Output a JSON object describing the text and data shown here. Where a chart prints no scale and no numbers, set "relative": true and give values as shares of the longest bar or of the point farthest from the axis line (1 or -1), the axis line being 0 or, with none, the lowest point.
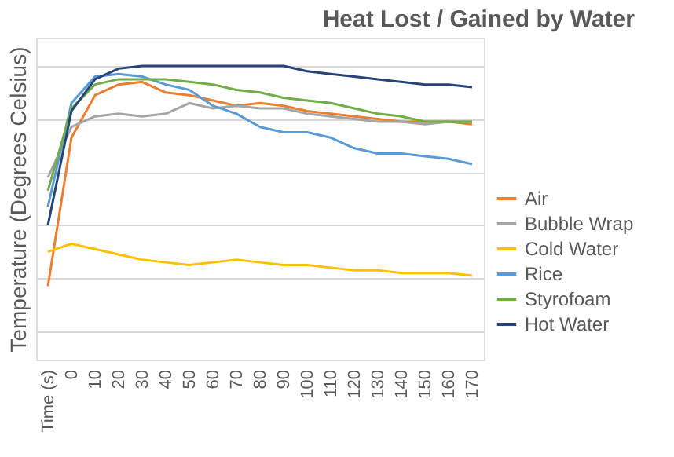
{
  "chart_data": {
    "type": "line",
    "title": "Heat Lost / Gained by Water",
    "ylabel": "Temperature (Degrees Celsius)",
    "relative": true,
    "grid": "y",
    "legend": "right",
    "marker": "none",
    "categories": [
      "Time (s)",
      "0",
      "10",
      "20",
      "30",
      "40",
      "50",
      "60",
      "70",
      "80",
      "90",
      "100",
      "110",
      "120",
      "130",
      "140",
      "150",
      "160",
      "170"
    ],
    "series": [
      {
        "name": "Air",
        "color": "#ed7d31",
        "values": [
          0.17,
          0.73,
          0.89,
          0.93,
          0.94,
          0.9,
          0.89,
          0.87,
          0.85,
          0.86,
          0.85,
          0.83,
          0.82,
          0.81,
          0.8,
          0.79,
          0.79,
          0.79,
          0.78
        ]
      },
      {
        "name": "Bubble Wrap",
        "color": "#a5a5a5",
        "values": [
          0.58,
          0.77,
          0.81,
          0.82,
          0.81,
          0.82,
          0.86,
          0.84,
          0.85,
          0.84,
          0.84,
          0.82,
          0.81,
          0.8,
          0.79,
          0.79,
          0.78,
          0.79,
          0.79
        ]
      },
      {
        "name": "Cold Water",
        "color": "#ffc000",
        "values": [
          0.3,
          0.33,
          0.31,
          0.29,
          0.27,
          0.26,
          0.25,
          0.26,
          0.27,
          0.26,
          0.25,
          0.25,
          0.24,
          0.23,
          0.23,
          0.22,
          0.22,
          0.22,
          0.21
        ]
      },
      {
        "name": "Rice",
        "color": "#5b9bd5",
        "values": [
          0.47,
          0.86,
          0.96,
          0.97,
          0.96,
          0.93,
          0.91,
          0.85,
          0.82,
          0.77,
          0.75,
          0.75,
          0.73,
          0.69,
          0.67,
          0.67,
          0.66,
          0.65,
          0.63
        ]
      },
      {
        "name": "Styrofoam",
        "color": "#70ad47",
        "values": [
          0.53,
          0.84,
          0.93,
          0.95,
          0.95,
          0.95,
          0.94,
          0.93,
          0.91,
          0.9,
          0.88,
          0.87,
          0.86,
          0.84,
          0.82,
          0.81,
          0.79,
          0.79,
          0.79
        ]
      },
      {
        "name": "Hot Water",
        "color": "#264478",
        "values": [
          0.4,
          0.83,
          0.95,
          0.99,
          1.0,
          1.0,
          1.0,
          1.0,
          1.0,
          1.0,
          1.0,
          0.98,
          0.97,
          0.96,
          0.95,
          0.94,
          0.93,
          0.93,
          0.92
        ]
      }
    ]
  }
}
